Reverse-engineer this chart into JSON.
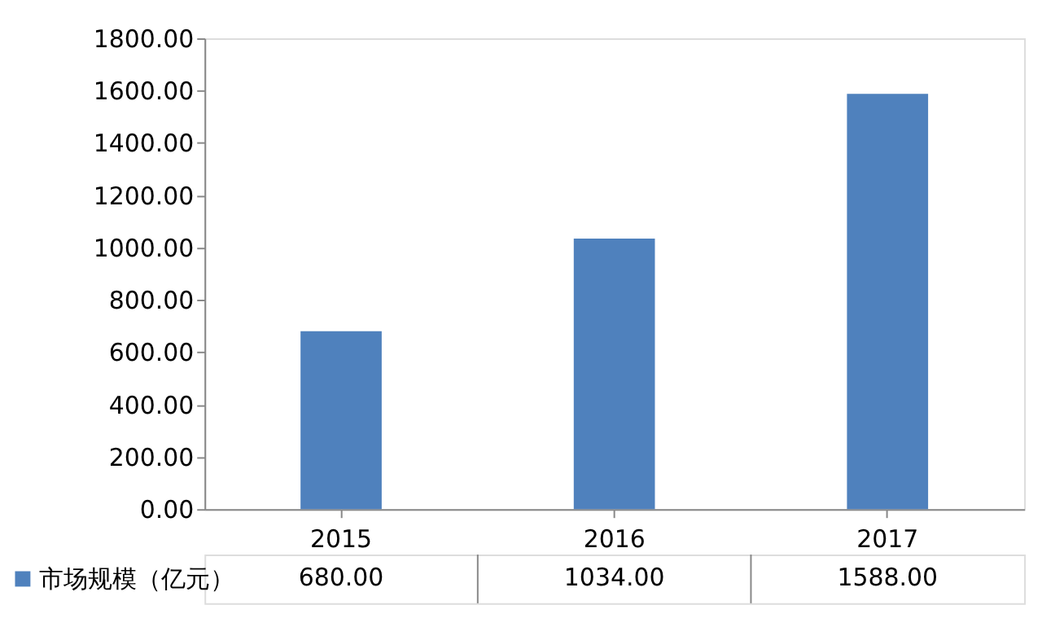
{
  "chart_data": {
    "type": "bar",
    "categories": [
      "2015",
      "2016",
      "2017"
    ],
    "series": [
      {
        "name": "市场规模（亿元）",
        "color": "#4f81bd",
        "values": [
          680,
          1034,
          1588
        ],
        "value_labels": [
          "680.00",
          "1034.00",
          "1588.00"
        ]
      }
    ],
    "ylim": [
      0,
      1800
    ],
    "yticks": [
      {
        "value": 0,
        "label": "0.00"
      },
      {
        "value": 200,
        "label": "200.00"
      },
      {
        "value": 400,
        "label": "400.00"
      },
      {
        "value": 600,
        "label": "600.00"
      },
      {
        "value": 800,
        "label": "800.00"
      },
      {
        "value": 1000,
        "label": "1000.00"
      },
      {
        "value": 1200,
        "label": "1200.00"
      },
      {
        "value": 1400,
        "label": "1400.00"
      },
      {
        "value": 1600,
        "label": "1600.00"
      },
      {
        "value": 1800,
        "label": "1800.00"
      }
    ],
    "grid": false,
    "legend": "bottom"
  }
}
